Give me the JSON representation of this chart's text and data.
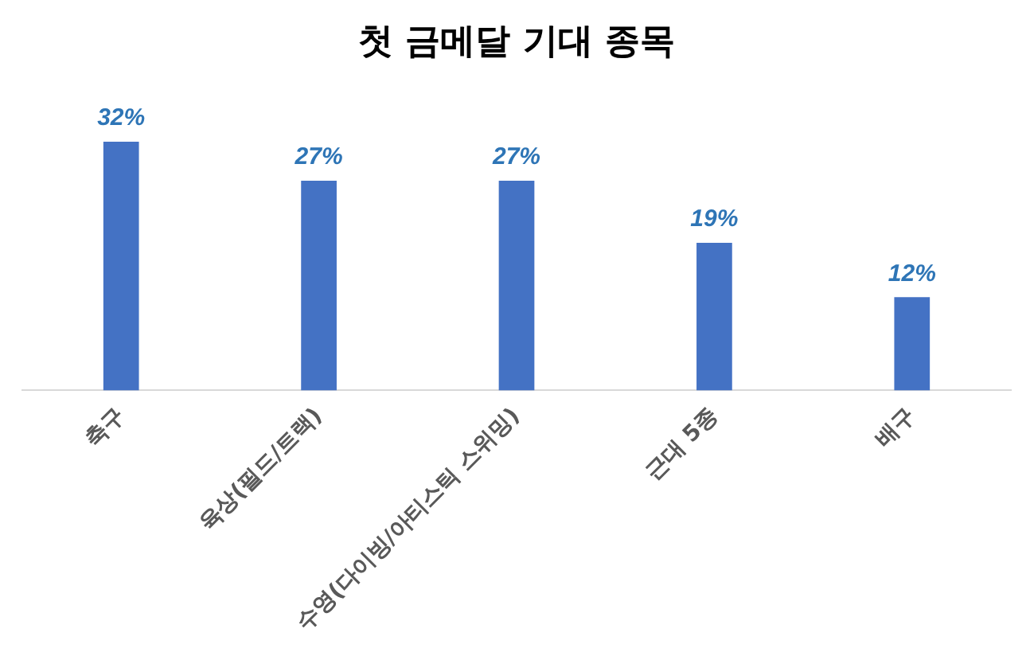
{
  "chart_data": {
    "type": "bar",
    "title": "첫 금메달 기대 종목",
    "categories": [
      "축구",
      "육상(필드/트랙)",
      "수영(다이빙/아티스틱 스위밍)",
      "근대 5종",
      "배구"
    ],
    "values": [
      32,
      27,
      27,
      19,
      12
    ],
    "value_labels": [
      "32%",
      "27%",
      "27%",
      "19%",
      "12%"
    ],
    "color": "#4472c4",
    "grid": false,
    "legend": false
  }
}
